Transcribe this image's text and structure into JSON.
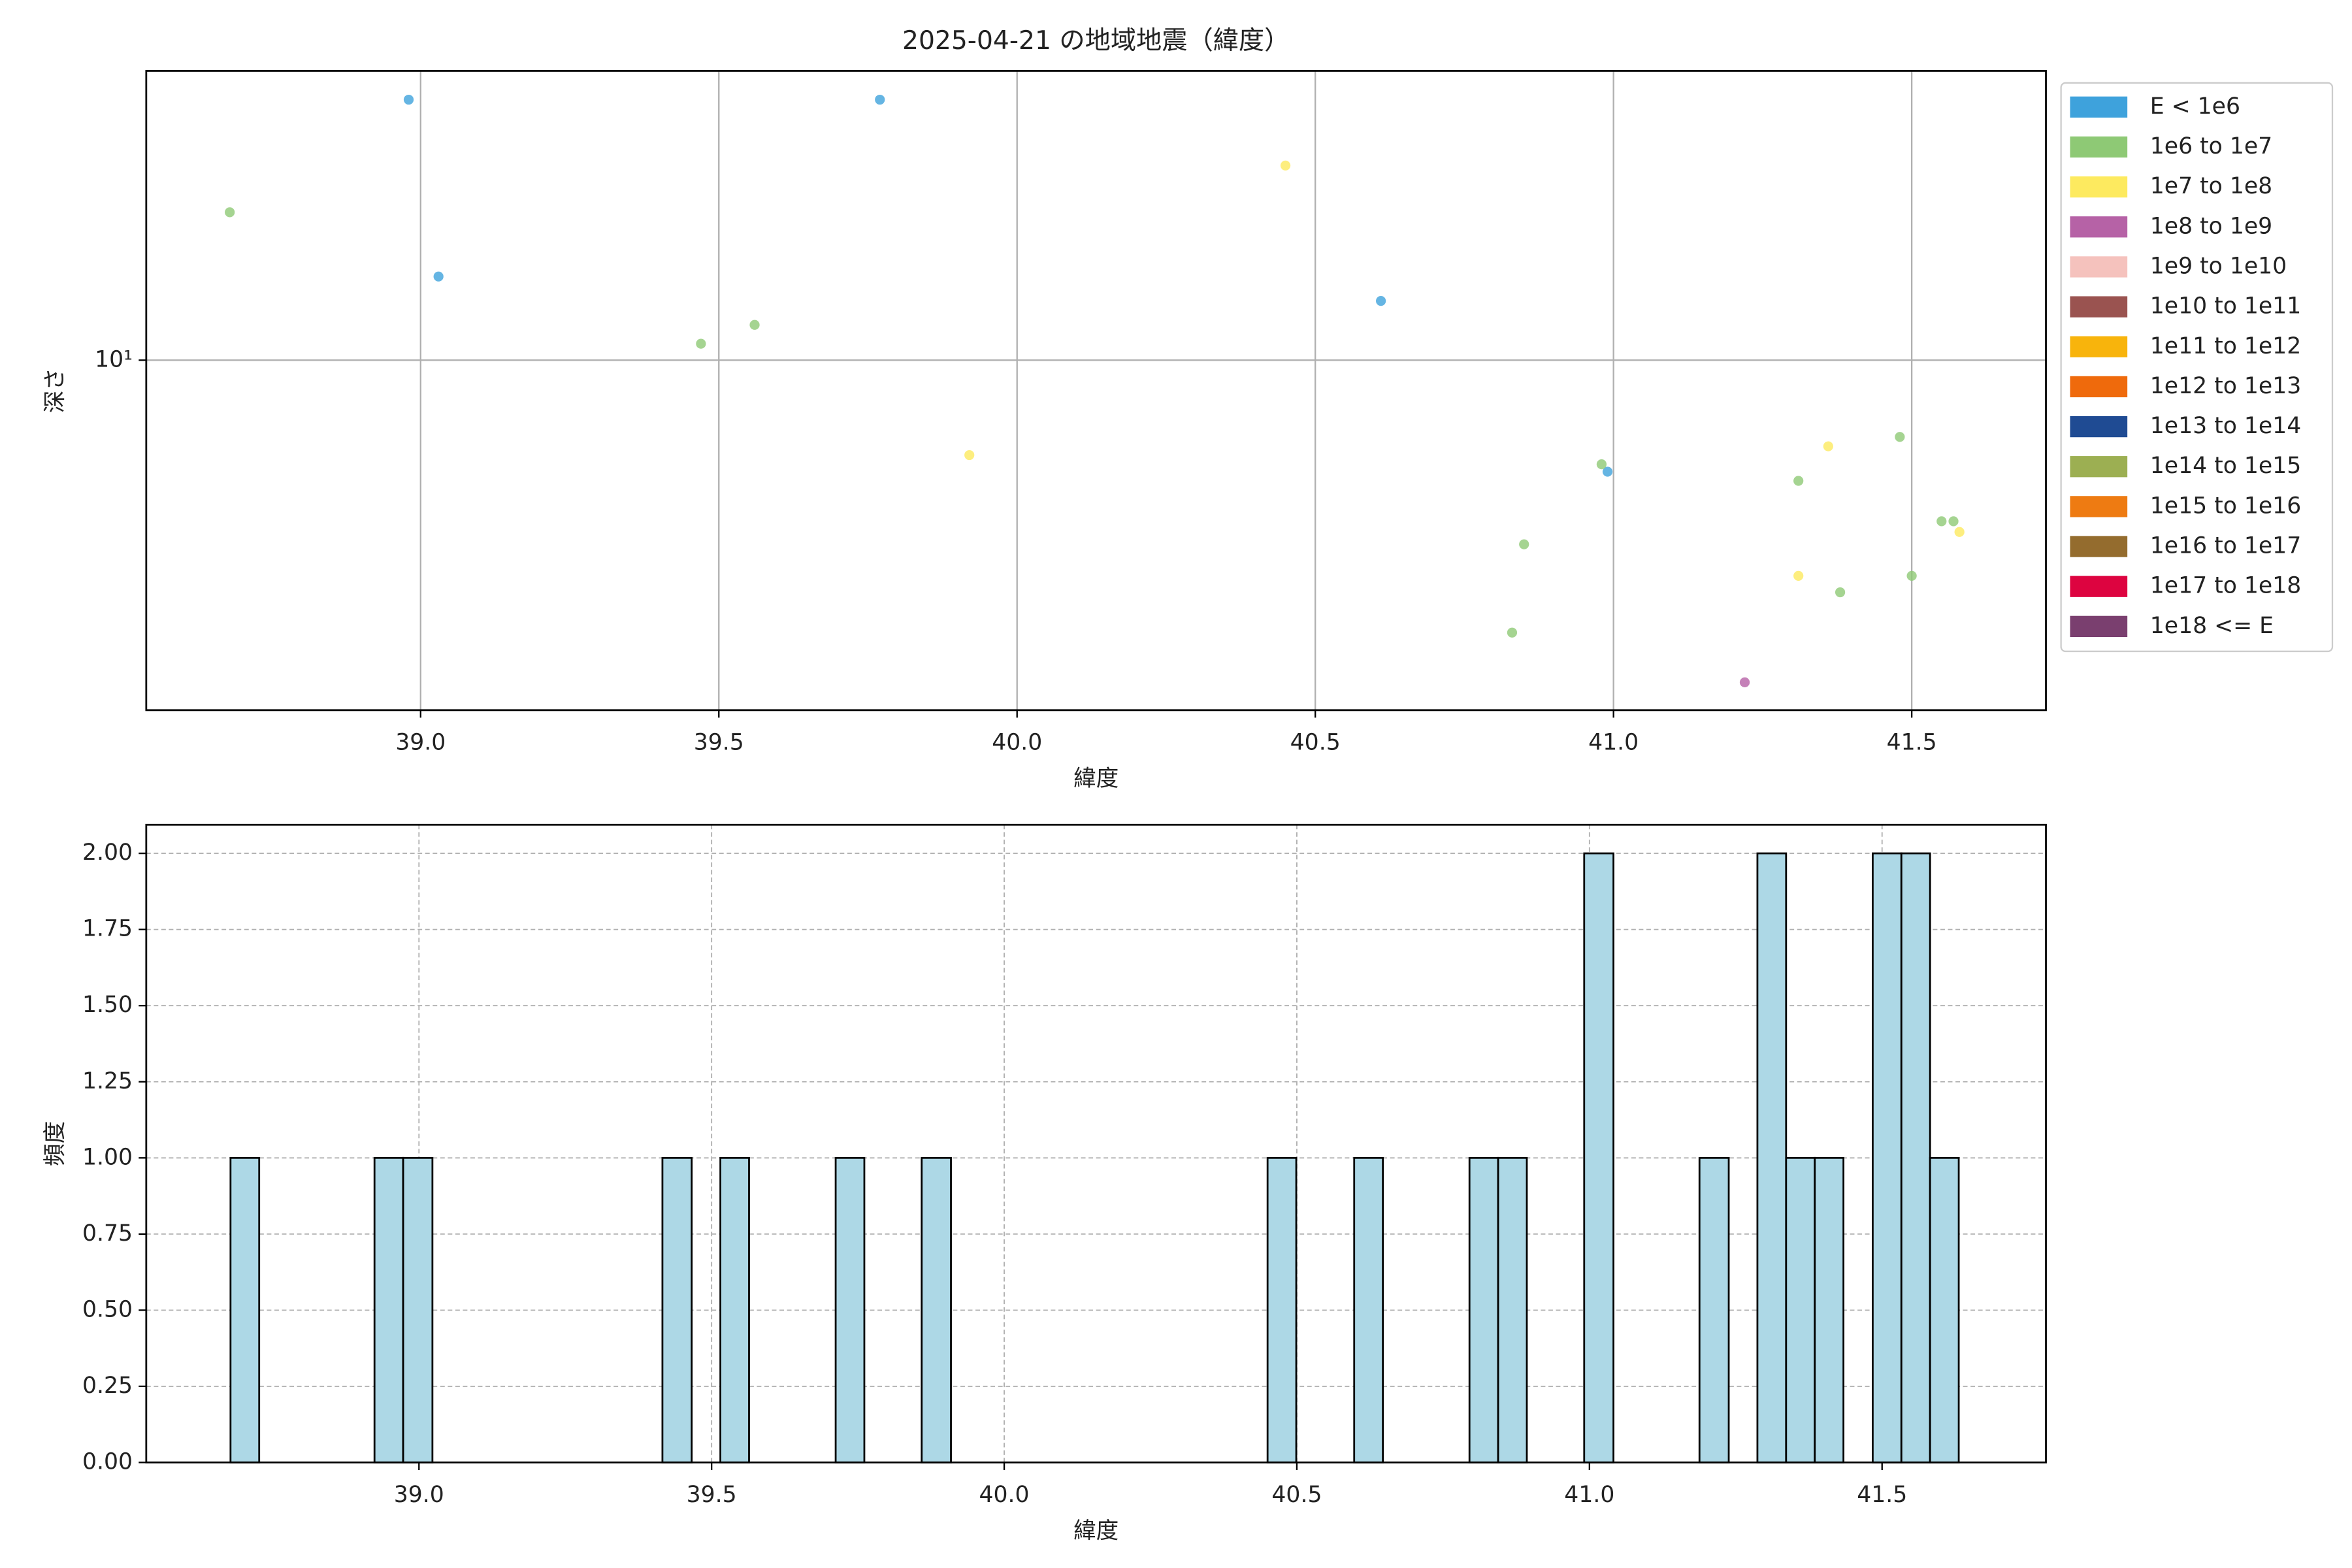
{
  "chart_data": [
    {
      "type": "scatter",
      "title": "2025-04-21 の地域地震（緯度）",
      "xlabel": "緯度",
      "ylabel": "深さ",
      "xlim": [
        38.54,
        41.725
      ],
      "xticks": [
        {
          "value": 39,
          "label": "39.0"
        },
        {
          "value": 39.5,
          "label": "39.5"
        },
        {
          "value": 40,
          "label": "40.0"
        },
        {
          "value": 40.5,
          "label": "40.5"
        },
        {
          "value": 41,
          "label": "41.0"
        },
        {
          "value": 41.5,
          "label": "41.5"
        }
      ],
      "ylim": [
        1.94,
        38.8
      ],
      "yscale": "log",
      "yticks": [
        {
          "value": 10,
          "label": "10¹"
        }
      ],
      "grid": true,
      "legend": "outside-right",
      "series": [
        {
          "name": "E < 1e6",
          "color": "#3ea2dc",
          "x": [
            38.98,
            39.03,
            39.77,
            40.61,
            40.99
          ],
          "values": [
            33.9,
            14.8,
            33.9,
            13.2,
            5.93
          ]
        },
        {
          "name": "1e6 to 1e7",
          "color": "#8ec975",
          "x": [
            38.68,
            39.47,
            39.56,
            40.98,
            40.85,
            40.83,
            41.31,
            41.48,
            41.55,
            41.57,
            41.5,
            41.38
          ],
          "values": [
            20.0,
            10.8,
            11.8,
            6.14,
            4.22,
            2.79,
            5.68,
            6.98,
            4.7,
            4.7,
            3.64,
            3.37
          ]
        },
        {
          "name": "1e7 to 1e8",
          "color": "#fdea5f",
          "x": [
            40.45,
            39.92,
            41.36,
            41.58,
            41.31
          ],
          "values": [
            24.9,
            6.41,
            6.68,
            4.47,
            3.64
          ]
        },
        {
          "name": "1e8 to 1e9",
          "color": "#b662a6",
          "x": [
            41.22
          ],
          "values": [
            2.21
          ]
        },
        {
          "name": "1e9 to 1e10",
          "color": "#f5c2bd",
          "x": [],
          "values": []
        },
        {
          "name": "1e10 to 1e11",
          "color": "#9a5350",
          "x": [],
          "values": []
        },
        {
          "name": "1e11 to 1e12",
          "color": "#f8b40c",
          "x": [],
          "values": []
        },
        {
          "name": "1e12 to 1e13",
          "color": "#ef6a0c",
          "x": [],
          "values": []
        },
        {
          "name": "1e13 to 1e14",
          "color": "#1f4b93",
          "x": [],
          "values": []
        },
        {
          "name": "1e14 to 1e15",
          "color": "#9caf52",
          "x": [],
          "values": []
        },
        {
          "name": "1e15 to 1e16",
          "color": "#ee7b12",
          "x": [],
          "values": []
        },
        {
          "name": "1e16 to 1e17",
          "color": "#946c2e",
          "x": [],
          "values": []
        },
        {
          "name": "1e17 to 1e18",
          "color": "#dd0440",
          "x": [],
          "values": []
        },
        {
          "name": "1e18 <= E",
          "color": "#7a3f6f",
          "x": [],
          "values": []
        }
      ]
    },
    {
      "type": "histogram",
      "xlabel": "緯度",
      "ylabel": "頻度",
      "color": "#add8e6",
      "edgecolor": "#000000",
      "xlim": [
        38.534,
        41.78
      ],
      "xticks": [
        {
          "value": 39,
          "label": "39.0"
        },
        {
          "value": 39.5,
          "label": "39.5"
        },
        {
          "value": 40,
          "label": "40.0"
        },
        {
          "value": 40.5,
          "label": "40.5"
        },
        {
          "value": 41,
          "label": "41.0"
        },
        {
          "value": 41.5,
          "label": "41.5"
        }
      ],
      "ylim": [
        0,
        2.094
      ],
      "yticks": [
        {
          "value": 0,
          "label": "0.00"
        },
        {
          "value": 0.25,
          "label": "0.25"
        },
        {
          "value": 0.5,
          "label": "0.50"
        },
        {
          "value": 0.75,
          "label": "0.75"
        },
        {
          "value": 1,
          "label": "1.00"
        },
        {
          "value": 1.25,
          "label": "1.25"
        },
        {
          "value": 1.5,
          "label": "1.50"
        },
        {
          "value": 1.75,
          "label": "1.75"
        },
        {
          "value": 2,
          "label": "2.00"
        }
      ],
      "grid": true,
      "bins": [
        38.678,
        38.727,
        38.776,
        38.826,
        38.875,
        38.924,
        38.973,
        39.023,
        39.072,
        39.121,
        39.17,
        39.219,
        39.269,
        39.318,
        39.367,
        39.416,
        39.466,
        39.515,
        39.564,
        39.613,
        39.662,
        39.712,
        39.761,
        39.81,
        39.859,
        39.909,
        39.958,
        40.007,
        40.056,
        40.105,
        40.155,
        40.204,
        40.253,
        40.302,
        40.352,
        40.401,
        40.45,
        40.499,
        40.548,
        40.598,
        40.647,
        40.696,
        40.745,
        40.795,
        40.844,
        40.893,
        40.942,
        40.991,
        41.041,
        41.09,
        41.139,
        41.188,
        41.238,
        41.287,
        41.336,
        41.385,
        41.434,
        41.484,
        41.533,
        41.582,
        41.631
      ],
      "values": [
        1,
        0,
        0,
        0,
        0,
        1,
        1,
        0,
        0,
        0,
        0,
        0,
        0,
        0,
        0,
        1,
        0,
        1,
        0,
        0,
        0,
        1,
        0,
        0,
        1,
        0,
        0,
        0,
        0,
        0,
        0,
        0,
        0,
        0,
        0,
        0,
        1,
        0,
        0,
        1,
        0,
        0,
        0,
        1,
        1,
        0,
        0,
        2,
        0,
        0,
        0,
        1,
        0,
        2,
        1,
        1,
        0,
        2,
        2,
        1
      ]
    }
  ]
}
